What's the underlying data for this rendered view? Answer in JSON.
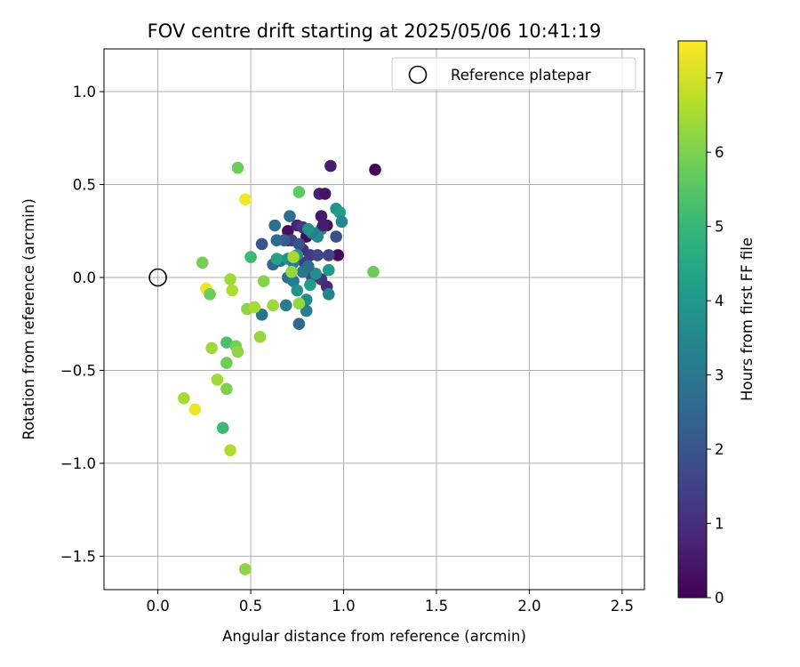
{
  "chart_data": {
    "type": "scatter",
    "title": "FOV centre drift starting at 2025/05/06 10:41:19",
    "xlabel": "Angular distance from reference (arcmin)",
    "ylabel": "Rotation from reference (arcmin)",
    "xlim": [
      -0.29,
      2.62
    ],
    "ylim": [
      -1.68,
      1.23
    ],
    "xticks": [
      0.0,
      0.5,
      1.0,
      1.5,
      2.0,
      2.5
    ],
    "xtick_labels": [
      "0.0",
      "0.5",
      "1.0",
      "1.5",
      "2.0",
      "2.5"
    ],
    "yticks": [
      -1.5,
      -1.0,
      -0.5,
      0.0,
      0.5,
      1.0
    ],
    "ytick_labels": [
      "−1.5",
      "−1.0",
      "−0.5",
      "0.0",
      "0.5",
      "1.0"
    ],
    "grid": true,
    "legend": {
      "position": "upper right",
      "entries": [
        "Reference platepar"
      ]
    },
    "reference_point": {
      "x": 0.0,
      "y": 0.0,
      "marker": "open-circle",
      "color": "#000000"
    },
    "colorbar": {
      "label": "Hours from first FF file",
      "min": 0,
      "max": 7.5,
      "ticks": [
        0,
        1,
        2,
        3,
        4,
        5,
        6,
        7
      ],
      "tick_labels": [
        "0",
        "1",
        "2",
        "3",
        "4",
        "5",
        "6",
        "7"
      ],
      "colormap": "viridis",
      "colormap_stops": [
        "#440154",
        "#482878",
        "#3e4989",
        "#31688e",
        "#26828e",
        "#1f9e89",
        "#35b779",
        "#6ece58",
        "#b5de2b",
        "#fde725"
      ]
    },
    "points": [
      {
        "x": 1.17,
        "y": 0.58,
        "h": 0.1
      },
      {
        "x": 0.93,
        "y": 0.6,
        "h": 0.6
      },
      {
        "x": 0.87,
        "y": 0.45,
        "h": 0.7
      },
      {
        "x": 0.9,
        "y": 0.45,
        "h": 0.4
      },
      {
        "x": 0.88,
        "y": 0.33,
        "h": 0.5
      },
      {
        "x": 0.91,
        "y": 0.28,
        "h": 0.3
      },
      {
        "x": 0.97,
        "y": 0.12,
        "h": 0.2
      },
      {
        "x": 0.96,
        "y": 0.22,
        "h": 1.8
      },
      {
        "x": 0.7,
        "y": 0.25,
        "h": 0.3
      },
      {
        "x": 0.7,
        "y": 0.2,
        "h": 0.5
      },
      {
        "x": 0.75,
        "y": 0.28,
        "h": 0.8
      },
      {
        "x": 0.78,
        "y": 0.27,
        "h": 1.2
      },
      {
        "x": 0.8,
        "y": 0.22,
        "h": 0.2
      },
      {
        "x": 0.72,
        "y": 0.2,
        "h": 1.4
      },
      {
        "x": 0.78,
        "y": 0.15,
        "h": 1.0
      },
      {
        "x": 0.82,
        "y": 0.12,
        "h": 1.2
      },
      {
        "x": 0.86,
        "y": 0.12,
        "h": 1.6
      },
      {
        "x": 0.85,
        "y": 0.23,
        "h": 1.8
      },
      {
        "x": 0.76,
        "y": 0.18,
        "h": 1.9
      },
      {
        "x": 0.68,
        "y": 0.2,
        "h": 2.2
      },
      {
        "x": 0.56,
        "y": 0.18,
        "h": 2.0
      },
      {
        "x": 0.64,
        "y": 0.2,
        "h": 2.5
      },
      {
        "x": 0.63,
        "y": 0.28,
        "h": 2.8
      },
      {
        "x": 0.71,
        "y": 0.33,
        "h": 2.7
      },
      {
        "x": 0.79,
        "y": 0.08,
        "h": 1.3
      },
      {
        "x": 0.83,
        "y": 0.0,
        "h": 1.5
      },
      {
        "x": 0.88,
        "y": -0.01,
        "h": 1.1
      },
      {
        "x": 0.91,
        "y": -0.05,
        "h": 0.9
      },
      {
        "x": 0.92,
        "y": 0.12,
        "h": 1.5
      },
      {
        "x": 0.92,
        "y": 0.04,
        "h": 4.0
      },
      {
        "x": 0.92,
        "y": -0.09,
        "h": 3.4
      },
      {
        "x": 0.88,
        "y": 0.26,
        "h": 3.3
      },
      {
        "x": 0.89,
        "y": 0.28,
        "h": 0.6
      },
      {
        "x": 0.96,
        "y": 0.37,
        "h": 3.9
      },
      {
        "x": 0.98,
        "y": 0.35,
        "h": 4.1
      },
      {
        "x": 0.99,
        "y": 0.3,
        "h": 3.5
      },
      {
        "x": 0.86,
        "y": 0.22,
        "h": 3.6
      },
      {
        "x": 0.83,
        "y": 0.24,
        "h": 3.3
      },
      {
        "x": 0.81,
        "y": 0.26,
        "h": 3.8
      },
      {
        "x": 0.62,
        "y": 0.07,
        "h": 2.4
      },
      {
        "x": 0.66,
        "y": 0.09,
        "h": 2.9
      },
      {
        "x": 0.64,
        "y": 0.1,
        "h": 4.3
      },
      {
        "x": 0.7,
        "y": 0.1,
        "h": 3.8
      },
      {
        "x": 0.73,
        "y": 0.08,
        "h": 3.3
      },
      {
        "x": 0.75,
        "y": 0.12,
        "h": 3.9
      },
      {
        "x": 0.7,
        "y": 0.0,
        "h": 2.6
      },
      {
        "x": 0.73,
        "y": -0.02,
        "h": 3.1
      },
      {
        "x": 0.75,
        "y": -0.07,
        "h": 3.8
      },
      {
        "x": 0.8,
        "y": -0.12,
        "h": 3.6
      },
      {
        "x": 0.8,
        "y": -0.18,
        "h": 3.2
      },
      {
        "x": 0.69,
        "y": -0.15,
        "h": 3.1
      },
      {
        "x": 0.76,
        "y": -0.25,
        "h": 2.6
      },
      {
        "x": 0.56,
        "y": -0.2,
        "h": 2.9
      },
      {
        "x": 0.82,
        "y": -0.04,
        "h": 4.1
      },
      {
        "x": 0.85,
        "y": 0.02,
        "h": 3.7
      },
      {
        "x": 0.78,
        "y": 0.03,
        "h": 3.0
      },
      {
        "x": 0.81,
        "y": 0.06,
        "h": 2.7
      },
      {
        "x": 0.76,
        "y": 0.46,
        "h": 5.6
      },
      {
        "x": 0.73,
        "y": 0.11,
        "h": 6.5
      },
      {
        "x": 0.72,
        "y": 0.03,
        "h": 6.3
      },
      {
        "x": 0.62,
        "y": -0.15,
        "h": 6.4
      },
      {
        "x": 0.76,
        "y": -0.14,
        "h": 6.3
      },
      {
        "x": 0.43,
        "y": 0.59,
        "h": 5.8
      },
      {
        "x": 0.47,
        "y": 0.42,
        "h": 7.4
      },
      {
        "x": 0.5,
        "y": 0.11,
        "h": 5.1
      },
      {
        "x": 0.24,
        "y": 0.08,
        "h": 5.9
      },
      {
        "x": 0.39,
        "y": -0.01,
        "h": 6.4
      },
      {
        "x": 0.4,
        "y": -0.07,
        "h": 6.6
      },
      {
        "x": 0.57,
        "y": -0.02,
        "h": 6.1
      },
      {
        "x": 0.26,
        "y": -0.06,
        "h": 7.3
      },
      {
        "x": 0.28,
        "y": -0.09,
        "h": 5.8
      },
      {
        "x": 0.48,
        "y": -0.17,
        "h": 6.2
      },
      {
        "x": 0.52,
        "y": -0.16,
        "h": 6.5
      },
      {
        "x": 0.55,
        "y": -0.32,
        "h": 6.3
      },
      {
        "x": 0.29,
        "y": -0.38,
        "h": 6.4
      },
      {
        "x": 0.37,
        "y": -0.35,
        "h": 5.3
      },
      {
        "x": 0.42,
        "y": -0.37,
        "h": 5.9
      },
      {
        "x": 0.43,
        "y": -0.4,
        "h": 6.2
      },
      {
        "x": 0.37,
        "y": -0.46,
        "h": 5.8
      },
      {
        "x": 0.32,
        "y": -0.55,
        "h": 6.4
      },
      {
        "x": 0.37,
        "y": -0.6,
        "h": 6.0
      },
      {
        "x": 0.14,
        "y": -0.65,
        "h": 6.5
      },
      {
        "x": 0.2,
        "y": -0.71,
        "h": 7.3
      },
      {
        "x": 0.35,
        "y": -0.81,
        "h": 5.1
      },
      {
        "x": 0.39,
        "y": -0.93,
        "h": 6.6
      },
      {
        "x": 0.47,
        "y": -1.57,
        "h": 6.2
      },
      {
        "x": 1.16,
        "y": 0.03,
        "h": 5.8
      }
    ]
  }
}
